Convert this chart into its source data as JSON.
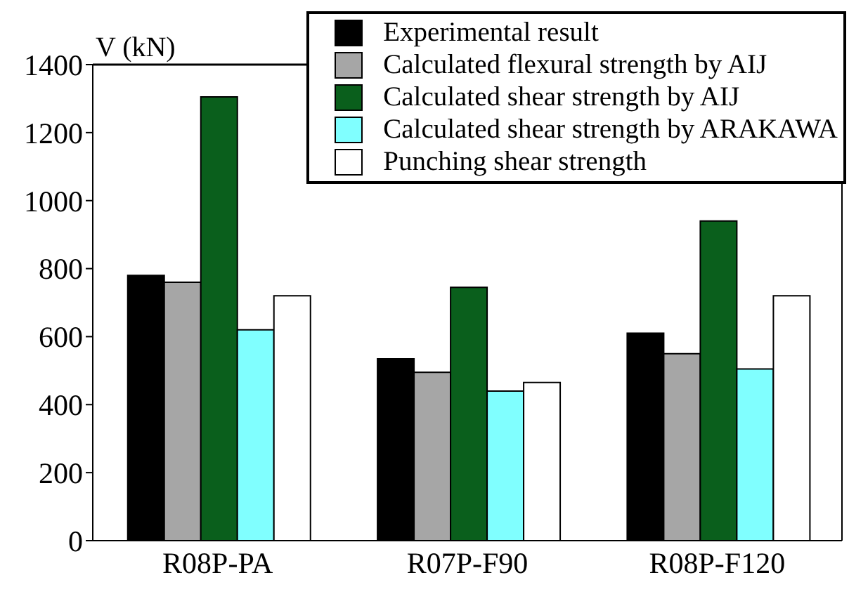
{
  "chart_data": {
    "type": "bar",
    "ylabel": "V (kN)",
    "categories": [
      "R08P-PA",
      "R07P-F90",
      "R08P-F120"
    ],
    "series": [
      {
        "name": "Experimental result",
        "color": "#000000",
        "values": [
          780,
          535,
          610
        ]
      },
      {
        "name": "Calculated flexural strength by AIJ",
        "color": "#a6a6a6",
        "values": [
          760,
          495,
          550
        ]
      },
      {
        "name": "Calculated shear strength by AIJ",
        "color": "#0a5f1c",
        "values": [
          1305,
          745,
          940
        ]
      },
      {
        "name": "Calculated shear strength by ARAKAWA",
        "color": "#80ffff",
        "values": [
          620,
          440,
          505
        ]
      },
      {
        "name": "Punching shear strength",
        "color": "#ffffff",
        "values": [
          720,
          465,
          720
        ]
      }
    ],
    "ylim": [
      0,
      1400
    ],
    "yticks": [
      0,
      200,
      400,
      600,
      800,
      1000,
      1200,
      1400
    ],
    "legend": "top right"
  }
}
